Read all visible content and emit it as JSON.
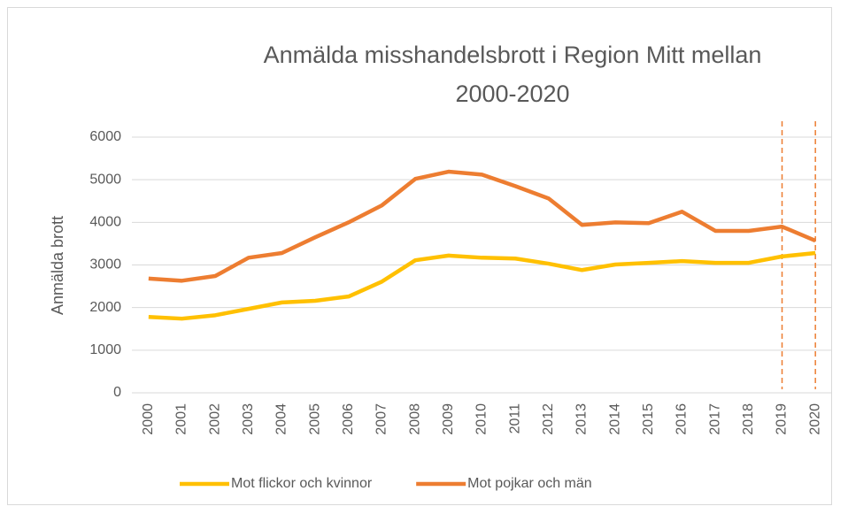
{
  "chart_data": {
    "type": "line",
    "title": "Anmälda misshandelsbrott i Region Mitt mellan 2000-2020",
    "y_label": "Anmälda brott",
    "categories": [
      "2000",
      "2001",
      "2002",
      "2003",
      "2004",
      "2005",
      "2006",
      "2007",
      "2008",
      "2009",
      "2010",
      "2011",
      "2012",
      "2013",
      "2014",
      "2015",
      "2016",
      "2017",
      "2018",
      "2019",
      "2020"
    ],
    "series": [
      {
        "name": "Mot flickor och kvinnor",
        "color": "#FFC000",
        "values": [
          1780,
          1740,
          1820,
          1970,
          2120,
          2160,
          2260,
          2610,
          3110,
          3220,
          3170,
          3150,
          3030,
          2880,
          3010,
          3050,
          3090,
          3050,
          3050,
          3200,
          3280
        ]
      },
      {
        "name": "Mot pojkar och män",
        "color": "#ED7D31",
        "values": [
          2680,
          2630,
          2740,
          3170,
          3280,
          3650,
          4000,
          4400,
          5020,
          5190,
          5120,
          4850,
          4560,
          3940,
          4000,
          3980,
          4250,
          3800,
          3800,
          3900,
          3570
        ]
      }
    ],
    "ylim": [
      0,
      6000
    ],
    "yticks": [
      0,
      1000,
      2000,
      3000,
      4000,
      5000,
      6000
    ],
    "grid": true,
    "highlight_categories": [
      "2019",
      "2020"
    ],
    "highlight_color": "#ED7D31",
    "legend": "bottom"
  }
}
